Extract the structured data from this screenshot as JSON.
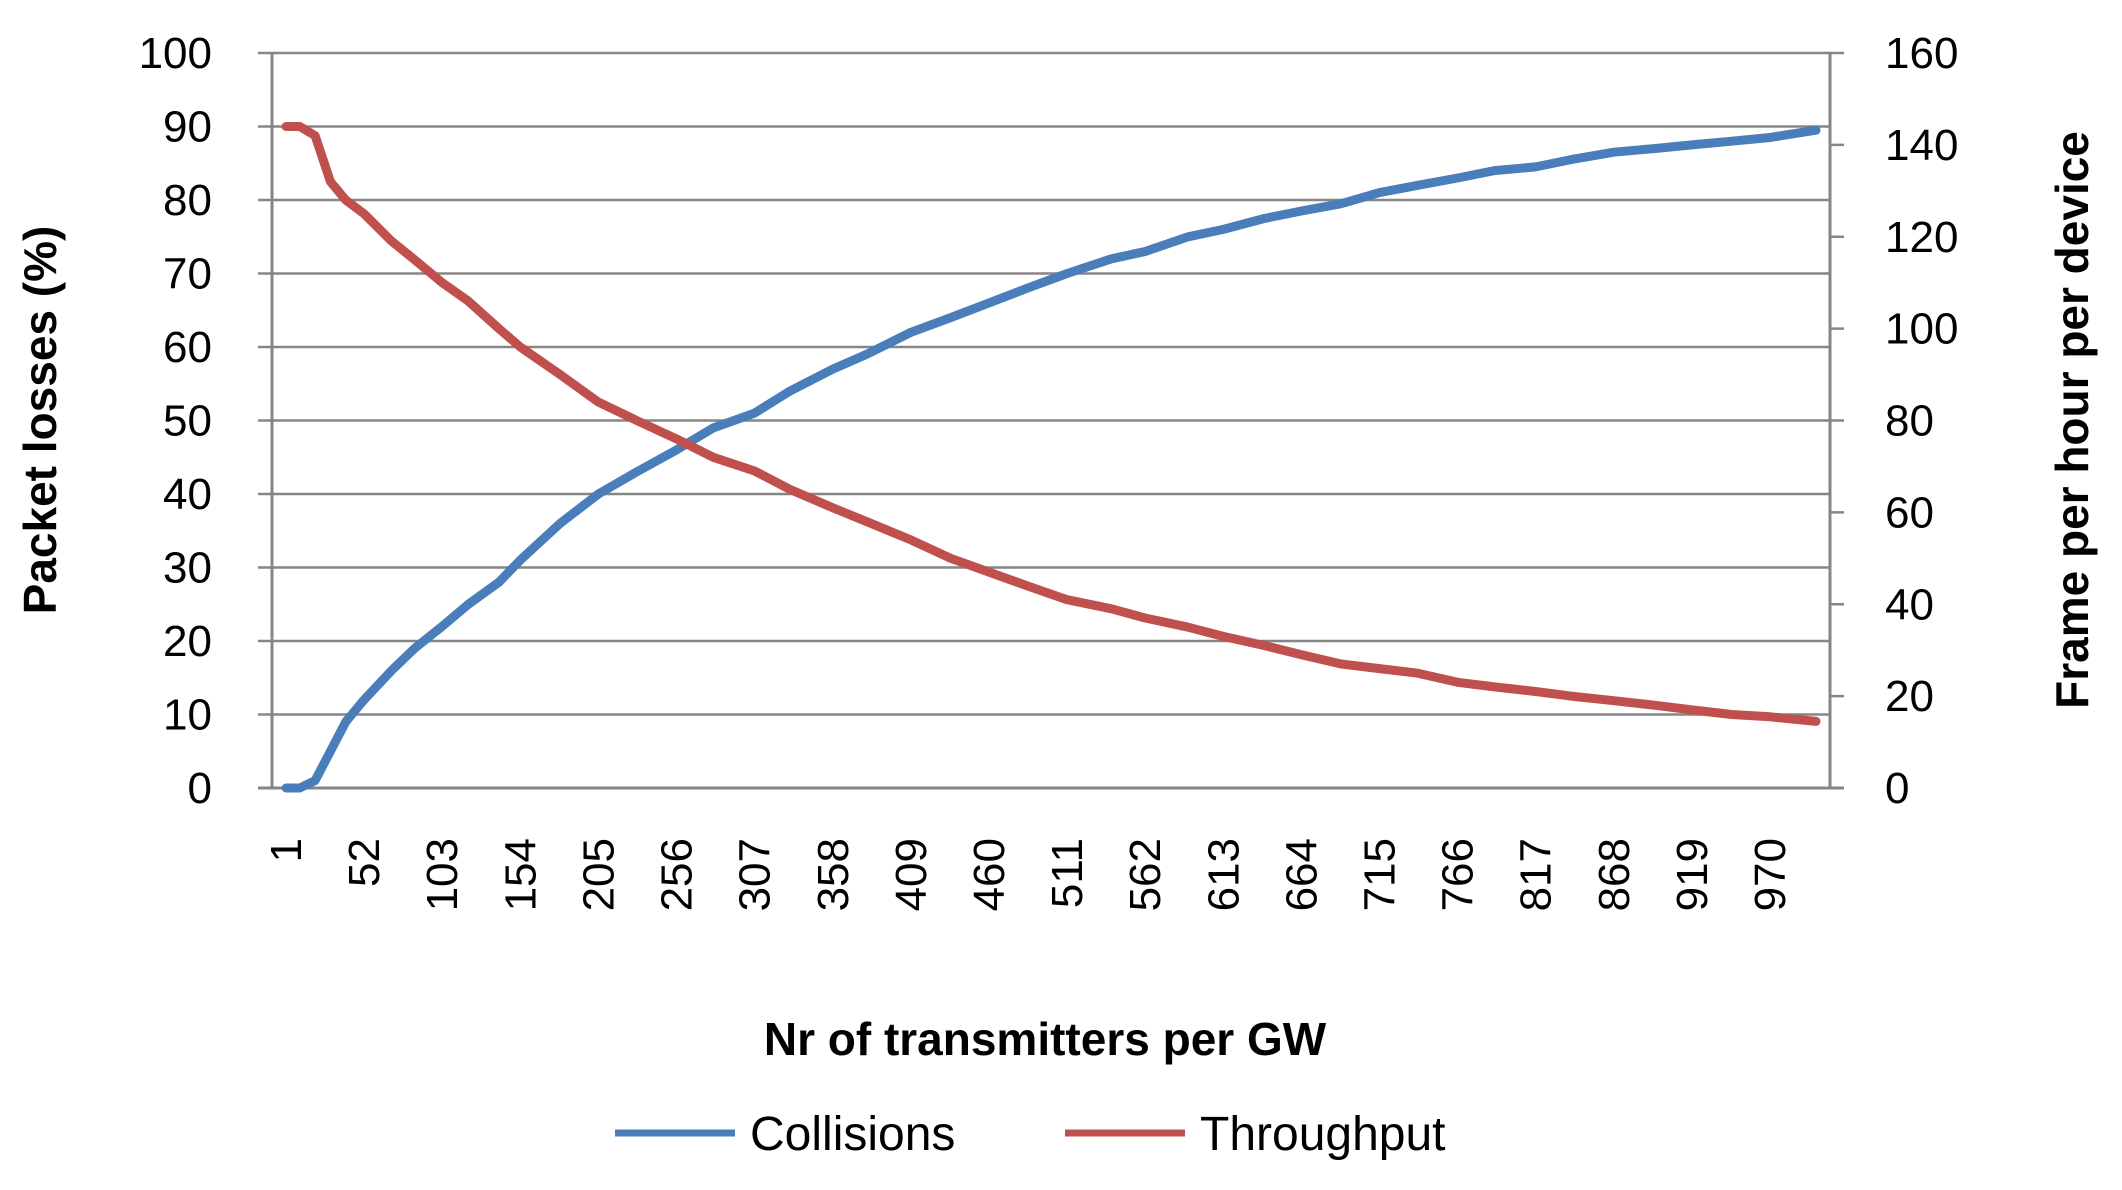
{
  "chart_data": {
    "type": "line",
    "title": "",
    "xlabel": "Nr of transmitters per GW",
    "ylabel": "Packet losses  (%)",
    "y2label": "Frame per hour per device",
    "ylim": [
      0,
      100
    ],
    "y2lim": [
      0,
      160
    ],
    "xlim": [
      1,
      1000
    ],
    "y_ticks": [
      "0",
      "10",
      "20",
      "30",
      "40",
      "50",
      "60",
      "70",
      "80",
      "90",
      "100"
    ],
    "y2_ticks": [
      "0",
      "20",
      "40",
      "60",
      "80",
      "100",
      "120",
      "140",
      "160"
    ],
    "x_ticks": [
      "1",
      "52",
      "103",
      "154",
      "205",
      "256",
      "307",
      "358",
      "409",
      "460",
      "511",
      "562",
      "613",
      "664",
      "715",
      "766",
      "817",
      "868",
      "919",
      "970"
    ],
    "grid": true,
    "legend_position": "bottom",
    "series": [
      {
        "name": "Collisions",
        "axis": "left",
        "color": "#4a7ebb",
        "x": [
          1,
          10,
          20,
          30,
          40,
          52,
          70,
          85,
          103,
          120,
          140,
          154,
          180,
          205,
          230,
          256,
          280,
          307,
          330,
          358,
          380,
          409,
          435,
          460,
          485,
          511,
          540,
          562,
          590,
          613,
          640,
          664,
          690,
          715,
          740,
          766,
          790,
          817,
          840,
          868,
          895,
          919,
          945,
          970,
          1000
        ],
        "values": [
          0,
          0,
          1,
          5,
          9,
          12,
          16,
          19,
          22,
          25,
          28,
          31,
          36,
          40,
          43,
          46,
          49,
          51,
          54,
          57,
          59,
          62,
          64,
          66,
          68,
          70,
          72,
          73,
          75,
          76,
          77.5,
          78.5,
          79.5,
          81,
          82,
          83,
          84,
          84.5,
          85.5,
          86.5,
          87,
          87.5,
          88,
          88.5,
          89.5
        ]
      },
      {
        "name": "Throughput",
        "axis": "right",
        "color": "#c0504d",
        "x": [
          1,
          10,
          20,
          30,
          40,
          52,
          70,
          85,
          103,
          120,
          140,
          154,
          180,
          205,
          230,
          256,
          280,
          307,
          330,
          358,
          380,
          409,
          435,
          460,
          485,
          511,
          540,
          562,
          590,
          613,
          640,
          664,
          690,
          715,
          740,
          766,
          790,
          817,
          840,
          868,
          895,
          919,
          945,
          970,
          1000
        ],
        "values": [
          144,
          144,
          142,
          132,
          128,
          125,
          119,
          115,
          110,
          106,
          100,
          96,
          90,
          84,
          80,
          76,
          72,
          69,
          65,
          61,
          58,
          54,
          50,
          47,
          44,
          41,
          39,
          37,
          35,
          33,
          31,
          29,
          27,
          26,
          25,
          23,
          22,
          21,
          20,
          19,
          18,
          17,
          16,
          15.5,
          14.5
        ]
      }
    ]
  }
}
